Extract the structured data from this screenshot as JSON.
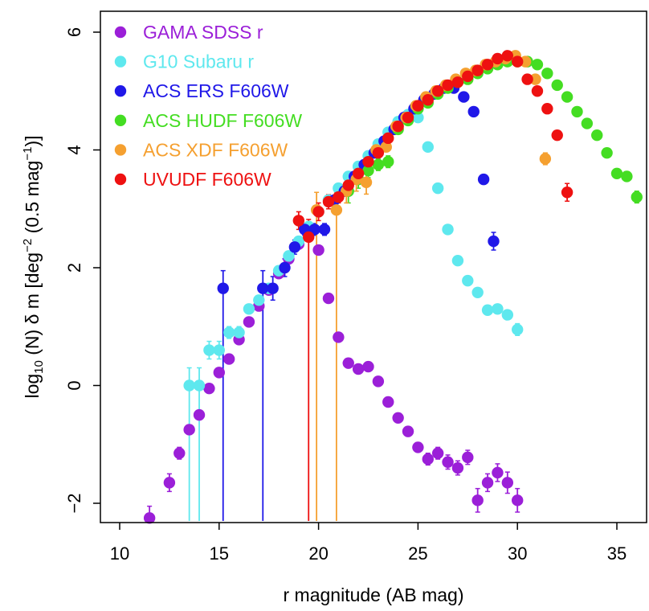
{
  "chart_data": {
    "type": "scatter",
    "title": "",
    "xlabel": "r magnitude (AB mag)",
    "ylabel": {
      "prefix": "log",
      "sub": "10",
      "main": " (N) δ m [deg",
      "sup1": "−2",
      "mid": " (0.5 mag",
      "sup2": "−1",
      "end": ")]"
    },
    "xlim": [
      9,
      36
    ],
    "ylim": [
      -2.3,
      6.1
    ],
    "xticks": [
      10,
      15,
      20,
      25,
      30,
      35
    ],
    "yticks": [
      -2,
      0,
      2,
      4,
      6
    ],
    "grid": false,
    "legend_position": "top-left",
    "series": [
      {
        "name": "GAMA SDSS r",
        "color": "#9b1fd8",
        "points": [
          {
            "x": 11.5,
            "y": -2.25,
            "err": 0.2
          },
          {
            "x": 12.5,
            "y": -1.65,
            "err": 0.15
          },
          {
            "x": 13.0,
            "y": -1.15,
            "err": 0.1
          },
          {
            "x": 13.5,
            "y": -0.75,
            "err": 0.08
          },
          {
            "x": 14.0,
            "y": -0.5,
            "err": 0.06
          },
          {
            "x": 14.5,
            "y": -0.05,
            "err": 0.05
          },
          {
            "x": 15.0,
            "y": 0.22,
            "err": 0.04
          },
          {
            "x": 15.5,
            "y": 0.45,
            "err": 0.04
          },
          {
            "x": 16.0,
            "y": 0.78,
            "err": 0.03
          },
          {
            "x": 16.5,
            "y": 1.08,
            "err": 0.03
          },
          {
            "x": 17.0,
            "y": 1.35,
            "err": 0.03
          },
          {
            "x": 17.5,
            "y": 1.62,
            "err": 0.03
          },
          {
            "x": 18.0,
            "y": 1.9,
            "err": 0.03
          },
          {
            "x": 18.5,
            "y": 2.15,
            "err": 0.03
          },
          {
            "x": 19.0,
            "y": 2.4,
            "err": 0.03
          },
          {
            "x": 19.5,
            "y": 2.6,
            "err": 0.03
          },
          {
            "x": 20.0,
            "y": 2.3,
            "err": 0.03
          },
          {
            "x": 20.5,
            "y": 1.48,
            "err": 0.03
          },
          {
            "x": 21.0,
            "y": 0.82,
            "err": 0.04
          },
          {
            "x": 21.5,
            "y": 0.38,
            "err": 0.05
          },
          {
            "x": 22.0,
            "y": 0.28,
            "err": 0.05
          },
          {
            "x": 22.5,
            "y": 0.32,
            "err": 0.05
          },
          {
            "x": 23.0,
            "y": 0.07,
            "err": 0.06
          },
          {
            "x": 23.5,
            "y": -0.28,
            "err": 0.06
          },
          {
            "x": 24.0,
            "y": -0.55,
            "err": 0.07
          },
          {
            "x": 24.5,
            "y": -0.78,
            "err": 0.08
          },
          {
            "x": 25.0,
            "y": -1.05,
            "err": 0.08
          },
          {
            "x": 25.5,
            "y": -1.25,
            "err": 0.1
          },
          {
            "x": 26.0,
            "y": -1.15,
            "err": 0.1
          },
          {
            "x": 26.5,
            "y": -1.3,
            "err": 0.12
          },
          {
            "x": 27.0,
            "y": -1.4,
            "err": 0.12
          },
          {
            "x": 27.5,
            "y": -1.22,
            "err": 0.12
          },
          {
            "x": 28.0,
            "y": -1.95,
            "err": 0.2
          },
          {
            "x": 28.5,
            "y": -1.65,
            "err": 0.15
          },
          {
            "x": 29.0,
            "y": -1.48,
            "err": 0.15
          },
          {
            "x": 29.5,
            "y": -1.65,
            "err": 0.18
          },
          {
            "x": 30.0,
            "y": -1.95,
            "err": 0.2
          }
        ]
      },
      {
        "name": "G10 Subaru r",
        "color": "#5ee8ee",
        "points": [
          {
            "x": 13.5,
            "y": 0.0,
            "err": 0.3,
            "low": -2.3
          },
          {
            "x": 14.0,
            "y": 0.0,
            "err": 0.3,
            "low": -2.3
          },
          {
            "x": 14.5,
            "y": 0.6,
            "err": 0.15
          },
          {
            "x": 15.0,
            "y": 0.6,
            "err": 0.15
          },
          {
            "x": 15.5,
            "y": 0.9,
            "err": 0.1
          },
          {
            "x": 16.0,
            "y": 0.9,
            "err": 0.1
          },
          {
            "x": 16.5,
            "y": 1.3,
            "err": 0.06
          },
          {
            "x": 17.0,
            "y": 1.45,
            "err": 0.05
          },
          {
            "x": 17.5,
            "y": 1.65,
            "err": 0.05
          },
          {
            "x": 18.0,
            "y": 1.95,
            "err": 0.04
          },
          {
            "x": 18.5,
            "y": 2.2,
            "err": 0.04
          },
          {
            "x": 19.0,
            "y": 2.45,
            "err": 0.04
          },
          {
            "x": 19.5,
            "y": 2.7,
            "err": 0.04
          },
          {
            "x": 20.0,
            "y": 2.95,
            "err": 0.04
          },
          {
            "x": 20.5,
            "y": 3.15,
            "err": 0.04
          },
          {
            "x": 21.0,
            "y": 3.35,
            "err": 0.04
          },
          {
            "x": 21.5,
            "y": 3.55,
            "err": 0.04
          },
          {
            "x": 22.0,
            "y": 3.72,
            "err": 0.04
          },
          {
            "x": 22.5,
            "y": 3.9,
            "err": 0.04
          },
          {
            "x": 23.0,
            "y": 4.1,
            "err": 0.04
          },
          {
            "x": 23.5,
            "y": 4.3,
            "err": 0.04
          },
          {
            "x": 24.0,
            "y": 4.48,
            "err": 0.04
          },
          {
            "x": 24.5,
            "y": 4.6,
            "err": 0.04
          },
          {
            "x": 25.0,
            "y": 4.55,
            "err": 0.04
          },
          {
            "x": 25.5,
            "y": 4.05,
            "err": 0.04
          },
          {
            "x": 26.0,
            "y": 3.35,
            "err": 0.04
          },
          {
            "x": 26.5,
            "y": 2.65,
            "err": 0.04
          },
          {
            "x": 27.0,
            "y": 2.12,
            "err": 0.05
          },
          {
            "x": 27.5,
            "y": 1.78,
            "err": 0.05
          },
          {
            "x": 28.0,
            "y": 1.58,
            "err": 0.06
          },
          {
            "x": 28.5,
            "y": 1.28,
            "err": 0.06
          },
          {
            "x": 29.0,
            "y": 1.3,
            "err": 0.06
          },
          {
            "x": 29.5,
            "y": 1.2,
            "err": 0.07
          },
          {
            "x": 30.0,
            "y": 0.95,
            "err": 0.1
          }
        ]
      },
      {
        "name": "ACS ERS F606W",
        "color": "#2018e8",
        "points": [
          {
            "x": 15.2,
            "y": 1.65,
            "err": 0.3,
            "low": -2.3
          },
          {
            "x": 17.2,
            "y": 1.65,
            "err": 0.3,
            "low": -2.3
          },
          {
            "x": 17.7,
            "y": 1.65,
            "err": 0.2
          },
          {
            "x": 18.3,
            "y": 2.0,
            "err": 0.15
          },
          {
            "x": 18.8,
            "y": 2.35,
            "err": 0.12
          },
          {
            "x": 19.3,
            "y": 2.65,
            "err": 0.1
          },
          {
            "x": 19.8,
            "y": 2.65,
            "err": 0.1
          },
          {
            "x": 20.3,
            "y": 2.65,
            "err": 0.1
          },
          {
            "x": 20.8,
            "y": 3.15,
            "err": 0.08
          },
          {
            "x": 21.3,
            "y": 3.3,
            "err": 0.07
          },
          {
            "x": 21.8,
            "y": 3.55,
            "err": 0.06
          },
          {
            "x": 22.3,
            "y": 3.75,
            "err": 0.05
          },
          {
            "x": 22.8,
            "y": 3.95,
            "err": 0.05
          },
          {
            "x": 23.3,
            "y": 4.15,
            "err": 0.04
          },
          {
            "x": 23.8,
            "y": 4.35,
            "err": 0.04
          },
          {
            "x": 24.3,
            "y": 4.55,
            "err": 0.04
          },
          {
            "x": 24.8,
            "y": 4.7,
            "err": 0.03
          },
          {
            "x": 25.3,
            "y": 4.85,
            "err": 0.03
          },
          {
            "x": 25.8,
            "y": 4.95,
            "err": 0.03
          },
          {
            "x": 26.3,
            "y": 5.05,
            "err": 0.03
          },
          {
            "x": 26.8,
            "y": 5.05,
            "err": 0.03
          },
          {
            "x": 27.3,
            "y": 4.9,
            "err": 0.03
          },
          {
            "x": 27.8,
            "y": 4.65,
            "err": 0.04
          },
          {
            "x": 28.3,
            "y": 3.5,
            "err": 0.06
          },
          {
            "x": 28.8,
            "y": 2.45,
            "err": 0.15
          }
        ]
      },
      {
        "name": "ACS HUDF F606W",
        "color": "#44dd22",
        "points": [
          {
            "x": 21.5,
            "y": 3.3,
            "err": 0.2
          },
          {
            "x": 22.0,
            "y": 3.5,
            "err": 0.15
          },
          {
            "x": 22.5,
            "y": 3.65,
            "err": 0.12
          },
          {
            "x": 23.0,
            "y": 3.75,
            "err": 0.1
          },
          {
            "x": 23.5,
            "y": 3.8,
            "err": 0.1
          },
          {
            "x": 24.0,
            "y": 4.35,
            "err": 0.07
          },
          {
            "x": 24.5,
            "y": 4.5,
            "err": 0.06
          },
          {
            "x": 25.0,
            "y": 4.7,
            "err": 0.05
          },
          {
            "x": 25.5,
            "y": 4.8,
            "err": 0.05
          },
          {
            "x": 26.0,
            "y": 4.95,
            "err": 0.04
          },
          {
            "x": 26.5,
            "y": 5.05,
            "err": 0.04
          },
          {
            "x": 27.0,
            "y": 5.15,
            "err": 0.03
          },
          {
            "x": 27.5,
            "y": 5.2,
            "err": 0.03
          },
          {
            "x": 28.0,
            "y": 5.3,
            "err": 0.03
          },
          {
            "x": 28.5,
            "y": 5.38,
            "err": 0.03
          },
          {
            "x": 29.0,
            "y": 5.45,
            "err": 0.03
          },
          {
            "x": 29.5,
            "y": 5.5,
            "err": 0.03
          },
          {
            "x": 30.0,
            "y": 5.5,
            "err": 0.03
          },
          {
            "x": 30.5,
            "y": 5.5,
            "err": 0.03
          },
          {
            "x": 31.0,
            "y": 5.45,
            "err": 0.03
          },
          {
            "x": 31.5,
            "y": 5.3,
            "err": 0.03
          },
          {
            "x": 32.0,
            "y": 5.1,
            "err": 0.03
          },
          {
            "x": 32.5,
            "y": 4.9,
            "err": 0.03
          },
          {
            "x": 33.0,
            "y": 4.65,
            "err": 0.03
          },
          {
            "x": 33.5,
            "y": 4.45,
            "err": 0.04
          },
          {
            "x": 34.0,
            "y": 4.25,
            "err": 0.04
          },
          {
            "x": 34.5,
            "y": 3.95,
            "err": 0.05
          },
          {
            "x": 35.0,
            "y": 3.6,
            "err": 0.07
          },
          {
            "x": 35.5,
            "y": 3.55,
            "err": 0.08
          },
          {
            "x": 36.0,
            "y": 3.2,
            "err": 0.1
          }
        ]
      },
      {
        "name": "ACS XDF F606W",
        "color": "#f5a030",
        "points": [
          {
            "x": 19.9,
            "y": 2.98,
            "err": 0.3,
            "low": -2.3
          },
          {
            "x": 20.9,
            "y": 2.98,
            "err": 0.3,
            "low": -2.3
          },
          {
            "x": 21.4,
            "y": 3.3,
            "err": 0.2
          },
          {
            "x": 21.9,
            "y": 3.5,
            "err": 0.2
          },
          {
            "x": 22.4,
            "y": 3.45,
            "err": 0.2
          },
          {
            "x": 22.9,
            "y": 4.0,
            "err": 0.1
          },
          {
            "x": 23.4,
            "y": 4.05,
            "err": 0.08
          },
          {
            "x": 23.9,
            "y": 4.4,
            "err": 0.06
          },
          {
            "x": 24.4,
            "y": 4.55,
            "err": 0.05
          },
          {
            "x": 24.9,
            "y": 4.75,
            "err": 0.04
          },
          {
            "x": 25.4,
            "y": 4.9,
            "err": 0.04
          },
          {
            "x": 25.9,
            "y": 5.0,
            "err": 0.03
          },
          {
            "x": 26.4,
            "y": 5.1,
            "err": 0.03
          },
          {
            "x": 26.9,
            "y": 5.2,
            "err": 0.03
          },
          {
            "x": 27.4,
            "y": 5.3,
            "err": 0.03
          },
          {
            "x": 27.9,
            "y": 5.35,
            "err": 0.03
          },
          {
            "x": 28.4,
            "y": 5.45,
            "err": 0.03
          },
          {
            "x": 28.9,
            "y": 5.5,
            "err": 0.03
          },
          {
            "x": 29.4,
            "y": 5.55,
            "err": 0.03
          },
          {
            "x": 29.9,
            "y": 5.6,
            "err": 0.03
          },
          {
            "x": 30.4,
            "y": 5.5,
            "err": 0.03
          },
          {
            "x": 30.9,
            "y": 5.2,
            "err": 0.04
          },
          {
            "x": 31.4,
            "y": 3.85,
            "err": 0.1
          }
        ]
      },
      {
        "name": "UVUDF F606W",
        "color": "#ee1111",
        "points": [
          {
            "x": 19.0,
            "y": 2.8,
            "err": 0.15
          },
          {
            "x": 19.5,
            "y": 2.52,
            "err": 0.3,
            "low": -2.3
          },
          {
            "x": 20.0,
            "y": 2.95,
            "err": 0.15
          },
          {
            "x": 20.5,
            "y": 3.12,
            "err": 0.12
          },
          {
            "x": 21.0,
            "y": 3.2,
            "err": 0.1
          },
          {
            "x": 21.5,
            "y": 3.4,
            "err": 0.08
          },
          {
            "x": 22.0,
            "y": 3.6,
            "err": 0.07
          },
          {
            "x": 22.5,
            "y": 3.8,
            "err": 0.06
          },
          {
            "x": 23.0,
            "y": 3.95,
            "err": 0.05
          },
          {
            "x": 23.5,
            "y": 4.2,
            "err": 0.05
          },
          {
            "x": 24.0,
            "y": 4.4,
            "err": 0.04
          },
          {
            "x": 24.5,
            "y": 4.55,
            "err": 0.04
          },
          {
            "x": 25.0,
            "y": 4.75,
            "err": 0.04
          },
          {
            "x": 25.5,
            "y": 4.85,
            "err": 0.03
          },
          {
            "x": 26.0,
            "y": 5.0,
            "err": 0.03
          },
          {
            "x": 26.5,
            "y": 5.1,
            "err": 0.03
          },
          {
            "x": 27.0,
            "y": 5.15,
            "err": 0.03
          },
          {
            "x": 27.5,
            "y": 5.25,
            "err": 0.03
          },
          {
            "x": 28.0,
            "y": 5.35,
            "err": 0.03
          },
          {
            "x": 28.5,
            "y": 5.45,
            "err": 0.03
          },
          {
            "x": 29.0,
            "y": 5.55,
            "err": 0.03
          },
          {
            "x": 29.5,
            "y": 5.6,
            "err": 0.03
          },
          {
            "x": 30.0,
            "y": 5.5,
            "err": 0.03
          },
          {
            "x": 30.5,
            "y": 5.2,
            "err": 0.04
          },
          {
            "x": 31.0,
            "y": 5.0,
            "err": 0.05
          },
          {
            "x": 31.5,
            "y": 4.7,
            "err": 0.06
          },
          {
            "x": 32.0,
            "y": 4.25,
            "err": 0.08
          },
          {
            "x": 32.5,
            "y": 3.28,
            "err": 0.15
          }
        ]
      }
    ]
  }
}
